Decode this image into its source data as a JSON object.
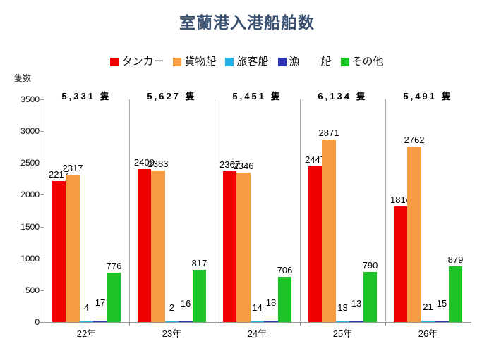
{
  "title": "室蘭港入港船舶数",
  "y_axis_unit": "隻数",
  "colors": {
    "title": "#3B5172",
    "tanker": "#F00000",
    "cargo": "#F89C42",
    "passenger": "#29B2E5",
    "fishing": "#2B32B4",
    "other": "#1CC426",
    "axis": "#999999"
  },
  "legend": [
    {
      "key": "tanker",
      "label": "タンカー",
      "color": "#F00000"
    },
    {
      "key": "cargo",
      "label": "貨物船",
      "color": "#F89C42"
    },
    {
      "key": "passenger",
      "label": "旅客船",
      "color": "#29B2E5"
    },
    {
      "key": "fishing",
      "label": "漁　　船",
      "color": "#2B32B4"
    },
    {
      "key": "other",
      "label": "その他",
      "color": "#1CC426"
    }
  ],
  "chart_data": {
    "type": "bar",
    "title": "室蘭港入港船舶数",
    "xlabel": "",
    "ylabel": "隻数",
    "ylim": [
      0,
      3500
    ],
    "yticks": [
      0,
      500,
      1000,
      1500,
      2000,
      2500,
      3000,
      3500
    ],
    "grid": false,
    "legend_position": "top",
    "categories": [
      "22年",
      "23年",
      "24年",
      "25年",
      "26年"
    ],
    "group_totals": [
      "5,331 隻",
      "5,627 隻",
      "5,451 隻",
      "6,134 隻",
      "5,491 隻"
    ],
    "series": [
      {
        "key": "tanker",
        "name": "タンカー",
        "color": "#F00000",
        "values": [
          2217,
          2409,
          2367,
          2447,
          1814
        ]
      },
      {
        "key": "cargo",
        "name": "貨物船",
        "color": "#F89C42",
        "values": [
          2317,
          2383,
          2346,
          2871,
          2762
        ]
      },
      {
        "key": "passenger",
        "name": "旅客船",
        "color": "#29B2E5",
        "values": [
          4,
          2,
          14,
          13,
          21
        ]
      },
      {
        "key": "fishing",
        "name": "漁船",
        "color": "#2B32B4",
        "values": [
          17,
          16,
          18,
          13,
          15
        ]
      },
      {
        "key": "other",
        "name": "その他",
        "color": "#1CC426",
        "values": [
          776,
          817,
          706,
          790,
          879
        ]
      }
    ]
  }
}
